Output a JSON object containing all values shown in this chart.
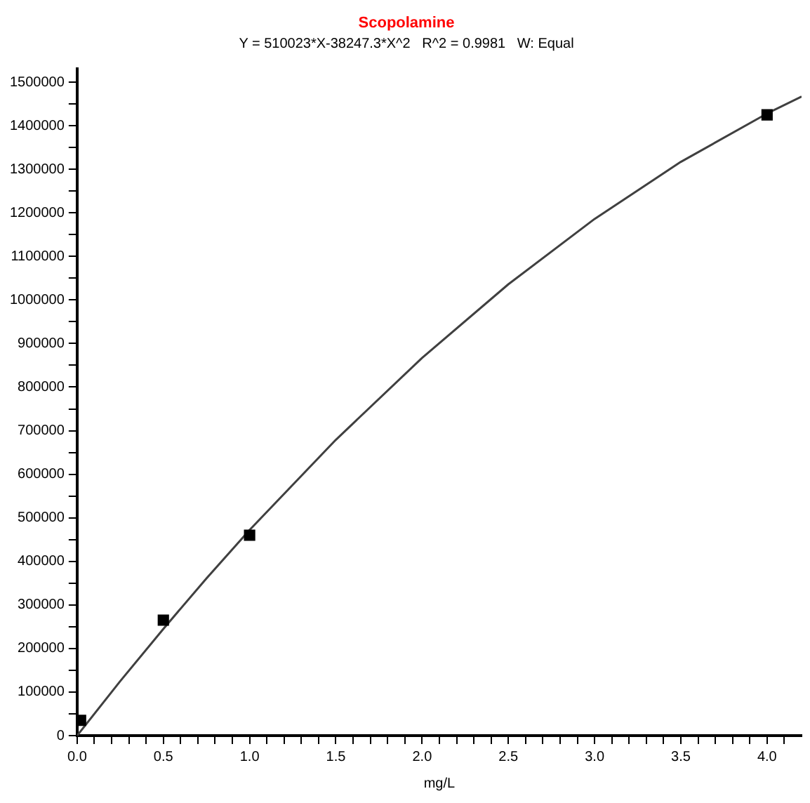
{
  "chart_data": {
    "type": "scatter",
    "title": "Scopolamine",
    "subtitle": "Y = 510023*X-38247.3*X^2   R^2 = 0.9981   W: Equal",
    "xlabel": "mg/L",
    "xlim": [
      0,
      4.2
    ],
    "ylim": [
      0,
      1530000
    ],
    "xticks": [
      {
        "value": 0,
        "label": "0.0"
      },
      {
        "value": 0.1,
        "label": null
      },
      {
        "value": 0.2,
        "label": null
      },
      {
        "value": 0.3,
        "label": null
      },
      {
        "value": 0.4,
        "label": null
      },
      {
        "value": 0.5,
        "label": "0.5"
      },
      {
        "value": 0.6,
        "label": null
      },
      {
        "value": 0.7,
        "label": null
      },
      {
        "value": 0.8,
        "label": null
      },
      {
        "value": 0.9,
        "label": null
      },
      {
        "value": 1,
        "label": "1.0"
      },
      {
        "value": 1.1,
        "label": null
      },
      {
        "value": 1.2,
        "label": null
      },
      {
        "value": 1.3,
        "label": null
      },
      {
        "value": 1.4,
        "label": null
      },
      {
        "value": 1.5,
        "label": "1.5"
      },
      {
        "value": 1.6,
        "label": null
      },
      {
        "value": 1.7,
        "label": null
      },
      {
        "value": 1.8,
        "label": null
      },
      {
        "value": 1.9,
        "label": null
      },
      {
        "value": 2,
        "label": "2.0"
      },
      {
        "value": 2.1,
        "label": null
      },
      {
        "value": 2.2,
        "label": null
      },
      {
        "value": 2.3,
        "label": null
      },
      {
        "value": 2.4,
        "label": null
      },
      {
        "value": 2.5,
        "label": "2.5"
      },
      {
        "value": 2.6,
        "label": null
      },
      {
        "value": 2.7,
        "label": null
      },
      {
        "value": 2.8,
        "label": null
      },
      {
        "value": 2.9,
        "label": null
      },
      {
        "value": 3,
        "label": "3.0"
      },
      {
        "value": 3.1,
        "label": null
      },
      {
        "value": 3.2,
        "label": null
      },
      {
        "value": 3.3,
        "label": null
      },
      {
        "value": 3.4,
        "label": null
      },
      {
        "value": 3.5,
        "label": "3.5"
      },
      {
        "value": 3.6,
        "label": null
      },
      {
        "value": 3.7,
        "label": null
      },
      {
        "value": 3.8,
        "label": null
      },
      {
        "value": 3.9,
        "label": null
      },
      {
        "value": 4,
        "label": "4.0"
      },
      {
        "value": 4.1,
        "label": null
      }
    ],
    "yticks": [
      0,
      {
        "value": 50000,
        "label": null
      },
      100000,
      {
        "value": 150000,
        "label": null
      },
      200000,
      {
        "value": 250000,
        "label": null
      },
      300000,
      {
        "value": 350000,
        "label": null
      },
      400000,
      {
        "value": 450000,
        "label": null
      },
      500000,
      {
        "value": 550000,
        "label": null
      },
      600000,
      {
        "value": 650000,
        "label": null
      },
      700000,
      {
        "value": 750000,
        "label": null
      },
      800000,
      {
        "value": 850000,
        "label": null
      },
      900000,
      {
        "value": 950000,
        "label": null
      },
      1000000,
      {
        "value": 1050000,
        "label": null
      },
      1100000,
      {
        "value": 1150000,
        "label": null
      },
      1200000,
      {
        "value": 1250000,
        "label": null
      },
      1300000,
      {
        "value": 1350000,
        "label": null
      },
      1400000,
      {
        "value": 1450000,
        "label": null
      },
      1500000
    ],
    "grid": false,
    "legend": false,
    "series": [
      {
        "type": "line",
        "color": "#404040",
        "marker": "none",
        "line_style": "solid",
        "x": [
          0,
          0.25,
          0.5,
          0.75,
          1,
          1.5,
          2,
          2.5,
          3,
          3.5,
          4,
          4.2
        ],
        "values": [
          0,
          125000,
          245000,
          361000,
          472000,
          679000,
          867000,
          1036000,
          1186000,
          1317000,
          1428000,
          1467000
        ]
      },
      {
        "color": "#000000",
        "marker": "square",
        "x": [
          0.02,
          0.5,
          1,
          4
        ],
        "values": [
          35000,
          265000,
          460000,
          1425000
        ]
      }
    ]
  }
}
